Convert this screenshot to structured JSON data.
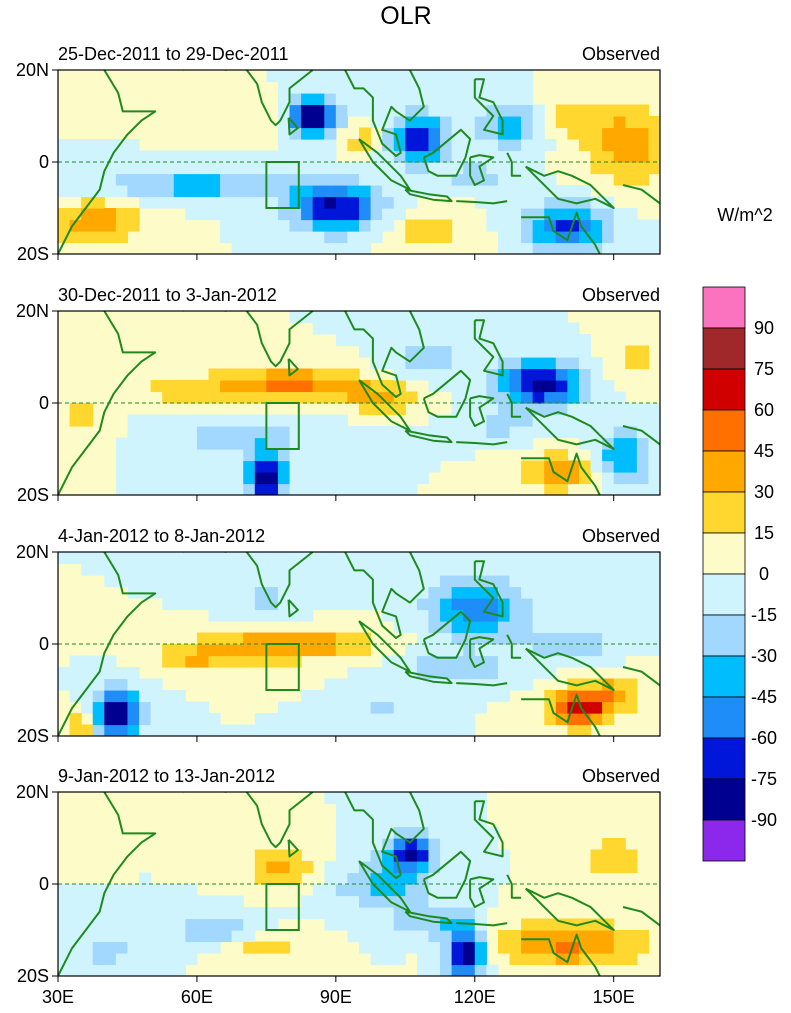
{
  "chart_data": {
    "type": "heatmap",
    "title": "OLR",
    "units": "W/m^2",
    "xlim": [
      30,
      160
    ],
    "ylim": [
      -20,
      20
    ],
    "x_ticks": [
      {
        "value": 30,
        "label": "30E"
      },
      {
        "value": 60,
        "label": "60E"
      },
      {
        "value": 90,
        "label": "90E"
      },
      {
        "value": 120,
        "label": "120E"
      },
      {
        "value": 150,
        "label": "150E"
      }
    ],
    "y_ticks": [
      {
        "value": 20,
        "label": "20N"
      },
      {
        "value": 0,
        "label": "0"
      },
      {
        "value": -20,
        "label": "20S"
      }
    ],
    "box": {
      "lon": [
        75,
        82
      ],
      "lat": [
        -10,
        0
      ]
    },
    "colorbar": {
      "labels": [
        "90",
        "75",
        "60",
        "45",
        "30",
        "15",
        "0",
        "-15",
        "-30",
        "-45",
        "-60",
        "-75",
        "-90"
      ],
      "colors": [
        "#fb72bf",
        "#a0282a",
        "#d00000",
        "#ff7000",
        "#ffa800",
        "#ffd72e",
        "#fdfcc8",
        "#cff4fe",
        "#a2d8fd",
        "#00bdfd",
        "#1e8df8",
        "#0016d8",
        "#000090",
        "#8c28ec"
      ]
    },
    "panels": [
      {
        "period": "25-Dec-2011 to 29-Dec-2011",
        "label": "Observed",
        "blobs": [
          {
            "lon": 85,
            "lat": 10,
            "sx": 5,
            "sy": 4.5,
            "v": -95
          },
          {
            "lon": 90,
            "lat": -10,
            "sx": 9,
            "sy": 5,
            "v": -80
          },
          {
            "lon": 108,
            "lat": 5,
            "sx": 6,
            "sy": 5,
            "v": -78
          },
          {
            "lon": 60,
            "lat": -5,
            "sx": 22,
            "sy": 3,
            "v": -38
          },
          {
            "lon": 140,
            "lat": -14,
            "sx": 9,
            "sy": 5,
            "v": -62
          },
          {
            "lon": 128,
            "lat": 8,
            "sx": 7,
            "sy": 5,
            "v": -42
          },
          {
            "lon": 120,
            "lat": -3,
            "sx": 5,
            "sy": 3,
            "v": -30
          },
          {
            "lon": 38,
            "lat": -13,
            "sx": 10,
            "sy": 5,
            "v": 40
          },
          {
            "lon": 153,
            "lat": 4,
            "sx": 9,
            "sy": 9,
            "v": 38
          },
          {
            "lon": 140,
            "lat": 10,
            "sx": 8,
            "sy": 5,
            "v": 22
          },
          {
            "lon": 95,
            "lat": 5,
            "sx": 5,
            "sy": 3,
            "v": 22
          },
          {
            "lon": 70,
            "lat": 10,
            "sx": 10,
            "sy": 4,
            "v": 15
          },
          {
            "lon": 110,
            "lat": -15,
            "sx": 9,
            "sy": 4,
            "v": 25
          }
        ]
      },
      {
        "period": "30-Dec-2011 to 3-Jan-2012",
        "label": "Observed",
        "blobs": [
          {
            "lon": 80,
            "lat": 4,
            "sx": 18,
            "sy": 3.5,
            "v": 48
          },
          {
            "lon": 100,
            "lat": 1,
            "sx": 8,
            "sy": 3,
            "v": 32
          },
          {
            "lon": 55,
            "lat": 3,
            "sx": 10,
            "sy": 3,
            "v": 18
          },
          {
            "lon": 134,
            "lat": 4,
            "sx": 9,
            "sy": 5,
            "v": -82
          },
          {
            "lon": 75,
            "lat": -16,
            "sx": 4,
            "sy": 5,
            "v": -95
          },
          {
            "lon": 70,
            "lat": -7,
            "sx": 15,
            "sy": 4,
            "v": -26
          },
          {
            "lon": 110,
            "lat": 10,
            "sx": 8,
            "sy": 5,
            "v": -22
          },
          {
            "lon": 152,
            "lat": -12,
            "sx": 6,
            "sy": 6,
            "v": -45
          },
          {
            "lon": 125,
            "lat": -5,
            "sx": 7,
            "sy": 3,
            "v": -22
          },
          {
            "lon": 138,
            "lat": -15,
            "sx": 8,
            "sy": 4,
            "v": 42
          },
          {
            "lon": 155,
            "lat": 10,
            "sx": 6,
            "sy": 6,
            "v": 22
          },
          {
            "lon": 35,
            "lat": -3,
            "sx": 6,
            "sy": 5,
            "v": 22
          }
        ]
      },
      {
        "period": "4-Jan-2012 to 8-Jan-2012",
        "label": "Observed",
        "blobs": [
          {
            "lon": 80,
            "lat": 0,
            "sx": 17,
            "sy": 3.5,
            "v": 48
          },
          {
            "lon": 60,
            "lat": -3,
            "sx": 9,
            "sy": 3,
            "v": 30
          },
          {
            "lon": 143,
            "lat": -14,
            "sx": 7,
            "sy": 4,
            "v": 66
          },
          {
            "lon": 150,
            "lat": -10,
            "sx": 8,
            "sy": 4,
            "v": 28
          },
          {
            "lon": 43,
            "lat": -15,
            "sx": 5,
            "sy": 5,
            "v": -95
          },
          {
            "lon": 120,
            "lat": 8,
            "sx": 10,
            "sy": 7,
            "v": -55
          },
          {
            "lon": 115,
            "lat": -5,
            "sx": 12,
            "sy": 3,
            "v": -30
          },
          {
            "lon": 140,
            "lat": 0,
            "sx": 10,
            "sy": 4,
            "v": -25
          },
          {
            "lon": 75,
            "lat": 10,
            "sx": 8,
            "sy": 4,
            "v": -20
          },
          {
            "lon": 35,
            "lat": -18,
            "sx": 3,
            "sy": 4,
            "v": 35
          },
          {
            "lon": 100,
            "lat": -14,
            "sx": 6,
            "sy": 3,
            "v": -20
          }
        ]
      },
      {
        "period": "9-Jan-2012 to 13-Jan-2012",
        "label": "Observed",
        "blobs": [
          {
            "lon": 106,
            "lat": 7,
            "sx": 5,
            "sy": 4,
            "v": -80
          },
          {
            "lon": 118,
            "lat": -15,
            "sx": 4,
            "sy": 6,
            "v": -90
          },
          {
            "lon": 100,
            "lat": 0,
            "sx": 10,
            "sy": 5,
            "v": -35
          },
          {
            "lon": 110,
            "lat": -8,
            "sx": 8,
            "sy": 4,
            "v": -28
          },
          {
            "lon": 65,
            "lat": -10,
            "sx": 9,
            "sy": 3,
            "v": -32
          },
          {
            "lon": 140,
            "lat": -13,
            "sx": 16,
            "sy": 5,
            "v": 48
          },
          {
            "lon": 150,
            "lat": 6,
            "sx": 8,
            "sy": 6,
            "v": 22
          },
          {
            "lon": 78,
            "lat": 4,
            "sx": 7,
            "sy": 4,
            "v": 35
          },
          {
            "lon": 75,
            "lat": -13,
            "sx": 8,
            "sy": 3,
            "v": 28
          },
          {
            "lon": 40,
            "lat": -15,
            "sx": 7,
            "sy": 4,
            "v": -22
          },
          {
            "lon": 35,
            "lat": 15,
            "sx": 6,
            "sy": 4,
            "v": 15
          }
        ]
      }
    ]
  }
}
